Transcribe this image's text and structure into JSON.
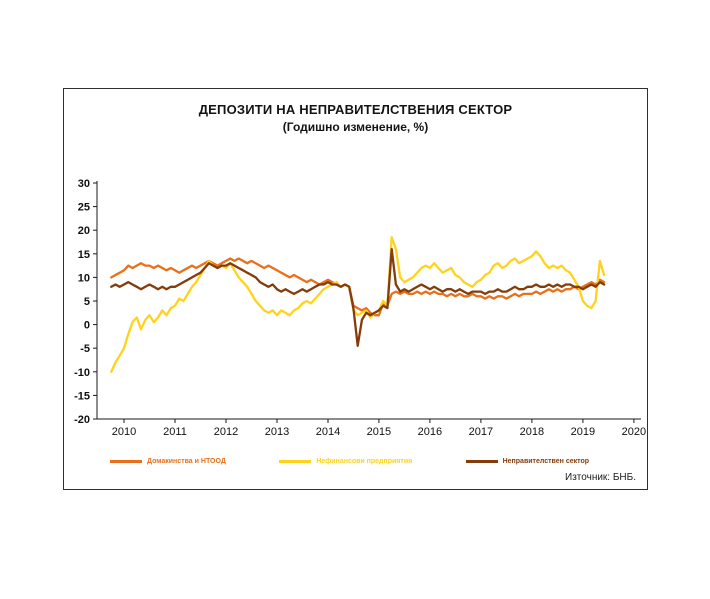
{
  "page": {
    "source_note": "Източник: БНБ."
  },
  "chart_data": {
    "type": "line",
    "title": "ДЕПОЗИТИ НА НЕПРАВИТЕЛСТВЕНИЯ СЕКТОР",
    "subtitle": "(Годишно изменение, %)",
    "ylabel": "",
    "xlabel": "",
    "ylim": [
      -20,
      30
    ],
    "yticks": [
      30,
      25,
      20,
      15,
      10,
      5,
      0,
      -5,
      -10,
      -15,
      -20
    ],
    "xlim": [
      2009.47,
      2020.14
    ],
    "xticks": [
      2010,
      2011,
      2012,
      2013,
      2014,
      2015,
      2016,
      2017,
      2018,
      2019,
      2020
    ],
    "grid": false,
    "legend_position": "bottom",
    "x_unit": "year, monthly observations",
    "x_start": 2009.75,
    "x_step": 0.0833333,
    "series": [
      {
        "name": "Домакинства и НТООД",
        "color": "#E8701A",
        "values": [
          10.0,
          10.5,
          11.0,
          11.5,
          12.5,
          12.0,
          12.5,
          13.0,
          12.5,
          12.5,
          12.0,
          12.5,
          12.0,
          11.5,
          12.0,
          11.5,
          11.0,
          11.5,
          12.0,
          12.5,
          12.0,
          12.5,
          13.0,
          13.5,
          13.0,
          12.5,
          13.0,
          13.5,
          14.0,
          13.5,
          14.0,
          13.5,
          13.0,
          13.5,
          13.0,
          12.5,
          12.0,
          12.5,
          12.0,
          11.5,
          11.0,
          10.5,
          10.0,
          10.5,
          10.0,
          9.5,
          9.0,
          9.5,
          9.0,
          8.5,
          9.0,
          9.5,
          9.0,
          8.5,
          8.0,
          8.5,
          8.0,
          4.0,
          3.5,
          3.0,
          3.5,
          2.5,
          2.0,
          2.0,
          4.5,
          4.0,
          6.5,
          7.0,
          6.5,
          7.0,
          6.5,
          6.5,
          7.0,
          6.5,
          7.0,
          6.5,
          7.0,
          6.5,
          6.5,
          6.0,
          6.5,
          6.0,
          6.5,
          6.0,
          6.0,
          6.5,
          6.0,
          6.0,
          5.5,
          6.0,
          5.5,
          6.0,
          6.0,
          5.5,
          6.0,
          6.5,
          6.0,
          6.5,
          6.5,
          6.5,
          7.0,
          6.5,
          7.0,
          7.5,
          7.0,
          7.5,
          7.0,
          7.5,
          7.5,
          8.0,
          7.5,
          8.0,
          8.5,
          9.0,
          8.5,
          9.5,
          9.0
        ]
      },
      {
        "name": "Нефинансови предприятия",
        "color": "#FFD21C",
        "values": [
          -10.0,
          -8.0,
          -6.5,
          -5.0,
          -2.0,
          0.5,
          1.5,
          -1.0,
          1.0,
          2.0,
          0.5,
          1.5,
          3.0,
          2.0,
          3.5,
          4.0,
          5.5,
          5.0,
          6.5,
          8.0,
          9.0,
          10.5,
          12.0,
          13.5,
          12.5,
          12.0,
          12.5,
          12.0,
          13.0,
          11.5,
          10.0,
          9.0,
          8.0,
          6.5,
          5.0,
          4.0,
          3.0,
          2.5,
          3.0,
          2.0,
          3.0,
          2.5,
          2.0,
          3.0,
          3.5,
          4.5,
          5.0,
          4.5,
          5.5,
          6.5,
          7.5,
          8.0,
          8.5,
          9.0,
          8.0,
          8.5,
          8.0,
          3.0,
          2.0,
          2.5,
          3.0,
          1.5,
          2.5,
          3.0,
          5.0,
          4.0,
          18.5,
          16.0,
          10.0,
          9.0,
          9.5,
          10.0,
          11.0,
          12.0,
          12.5,
          12.0,
          13.0,
          12.0,
          11.0,
          11.5,
          12.0,
          10.5,
          10.0,
          9.0,
          8.5,
          8.0,
          9.0,
          9.5,
          10.5,
          11.0,
          12.5,
          13.0,
          12.0,
          12.5,
          13.5,
          14.0,
          13.0,
          13.5,
          14.0,
          14.5,
          15.5,
          14.5,
          13.0,
          12.0,
          12.5,
          12.0,
          12.5,
          11.5,
          11.0,
          9.5,
          8.0,
          5.0,
          4.0,
          3.5,
          5.0,
          13.5,
          10.5
        ]
      },
      {
        "name": "Неправителствен сектор",
        "color": "#833C0A",
        "values": [
          8.0,
          8.5,
          8.0,
          8.5,
          9.0,
          8.5,
          8.0,
          7.5,
          8.0,
          8.5,
          8.0,
          7.5,
          8.0,
          7.5,
          8.0,
          8.0,
          8.5,
          9.0,
          9.5,
          10.0,
          10.5,
          11.0,
          12.0,
          13.0,
          12.5,
          12.0,
          12.5,
          12.5,
          13.0,
          12.5,
          12.0,
          11.5,
          11.0,
          10.5,
          10.0,
          9.0,
          8.5,
          8.0,
          8.5,
          7.5,
          7.0,
          7.5,
          7.0,
          6.5,
          7.0,
          7.5,
          7.0,
          7.5,
          8.0,
          8.5,
          8.5,
          9.0,
          8.5,
          8.5,
          8.0,
          8.5,
          8.0,
          3.5,
          -4.5,
          1.0,
          2.5,
          2.0,
          2.5,
          3.0,
          4.0,
          3.5,
          16.0,
          8.5,
          7.0,
          7.5,
          7.0,
          7.5,
          8.0,
          8.5,
          8.0,
          7.5,
          8.0,
          7.5,
          7.0,
          7.5,
          7.5,
          7.0,
          7.5,
          7.0,
          6.5,
          7.0,
          7.0,
          7.0,
          6.5,
          7.0,
          7.0,
          7.5,
          7.0,
          7.0,
          7.5,
          8.0,
          7.5,
          7.5,
          8.0,
          8.0,
          8.5,
          8.0,
          8.0,
          8.5,
          8.0,
          8.5,
          8.0,
          8.5,
          8.5,
          8.0,
          8.0,
          7.5,
          8.0,
          8.5,
          8.0,
          9.0,
          8.5
        ]
      }
    ]
  }
}
